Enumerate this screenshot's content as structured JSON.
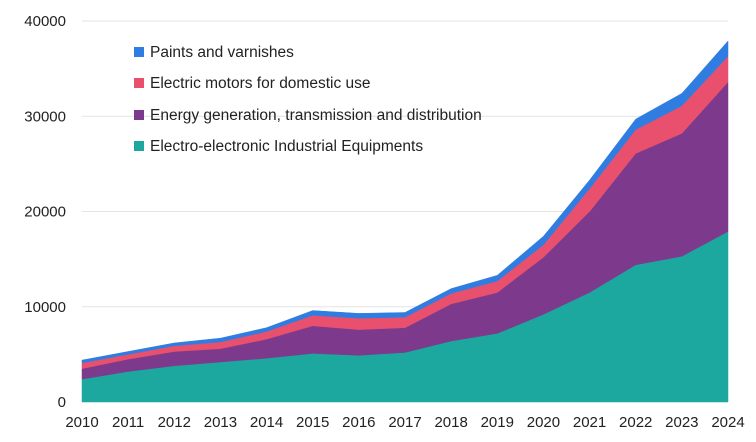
{
  "chart_data": {
    "type": "area",
    "stacked": true,
    "title": "",
    "xlabel": "",
    "ylabel": "",
    "x": [
      "2010",
      "2011",
      "2012",
      "2013",
      "2014",
      "2015",
      "2016",
      "2017",
      "2018",
      "2019",
      "2020",
      "2021",
      "2022",
      "2023",
      "2024"
    ],
    "ylim": [
      0,
      40000
    ],
    "yticks": [
      "0",
      "10000",
      "20000",
      "30000",
      "40000"
    ],
    "grid": true,
    "legend_position": "top-left",
    "series": [
      {
        "name": "Electro-electronic Industrial Equipments",
        "color": "#1ca79f",
        "values": [
          2400,
          3200,
          3800,
          4200,
          4600,
          5100,
          4900,
          5200,
          6400,
          7200,
          9200,
          11500,
          14400,
          15300,
          17900
        ]
      },
      {
        "name": "Energy generation, transmission and distribution",
        "color": "#7d3a8c",
        "values": [
          1100,
          1300,
          1500,
          1400,
          2000,
          2900,
          2700,
          2600,
          3900,
          4300,
          6000,
          8500,
          11700,
          12900,
          15700
        ]
      },
      {
        "name": "Electric motors for domestic use",
        "color": "#e8506e",
        "values": [
          600,
          500,
          600,
          700,
          800,
          1100,
          1200,
          1100,
          1100,
          1200,
          1300,
          2400,
          2500,
          2900,
          2700
        ]
      },
      {
        "name": "Paints and varnishes",
        "color": "#2f7de1",
        "values": [
          300,
          300,
          300,
          400,
          400,
          500,
          500,
          500,
          500,
          600,
          900,
          900,
          1100,
          1300,
          1600
        ]
      }
    ]
  }
}
